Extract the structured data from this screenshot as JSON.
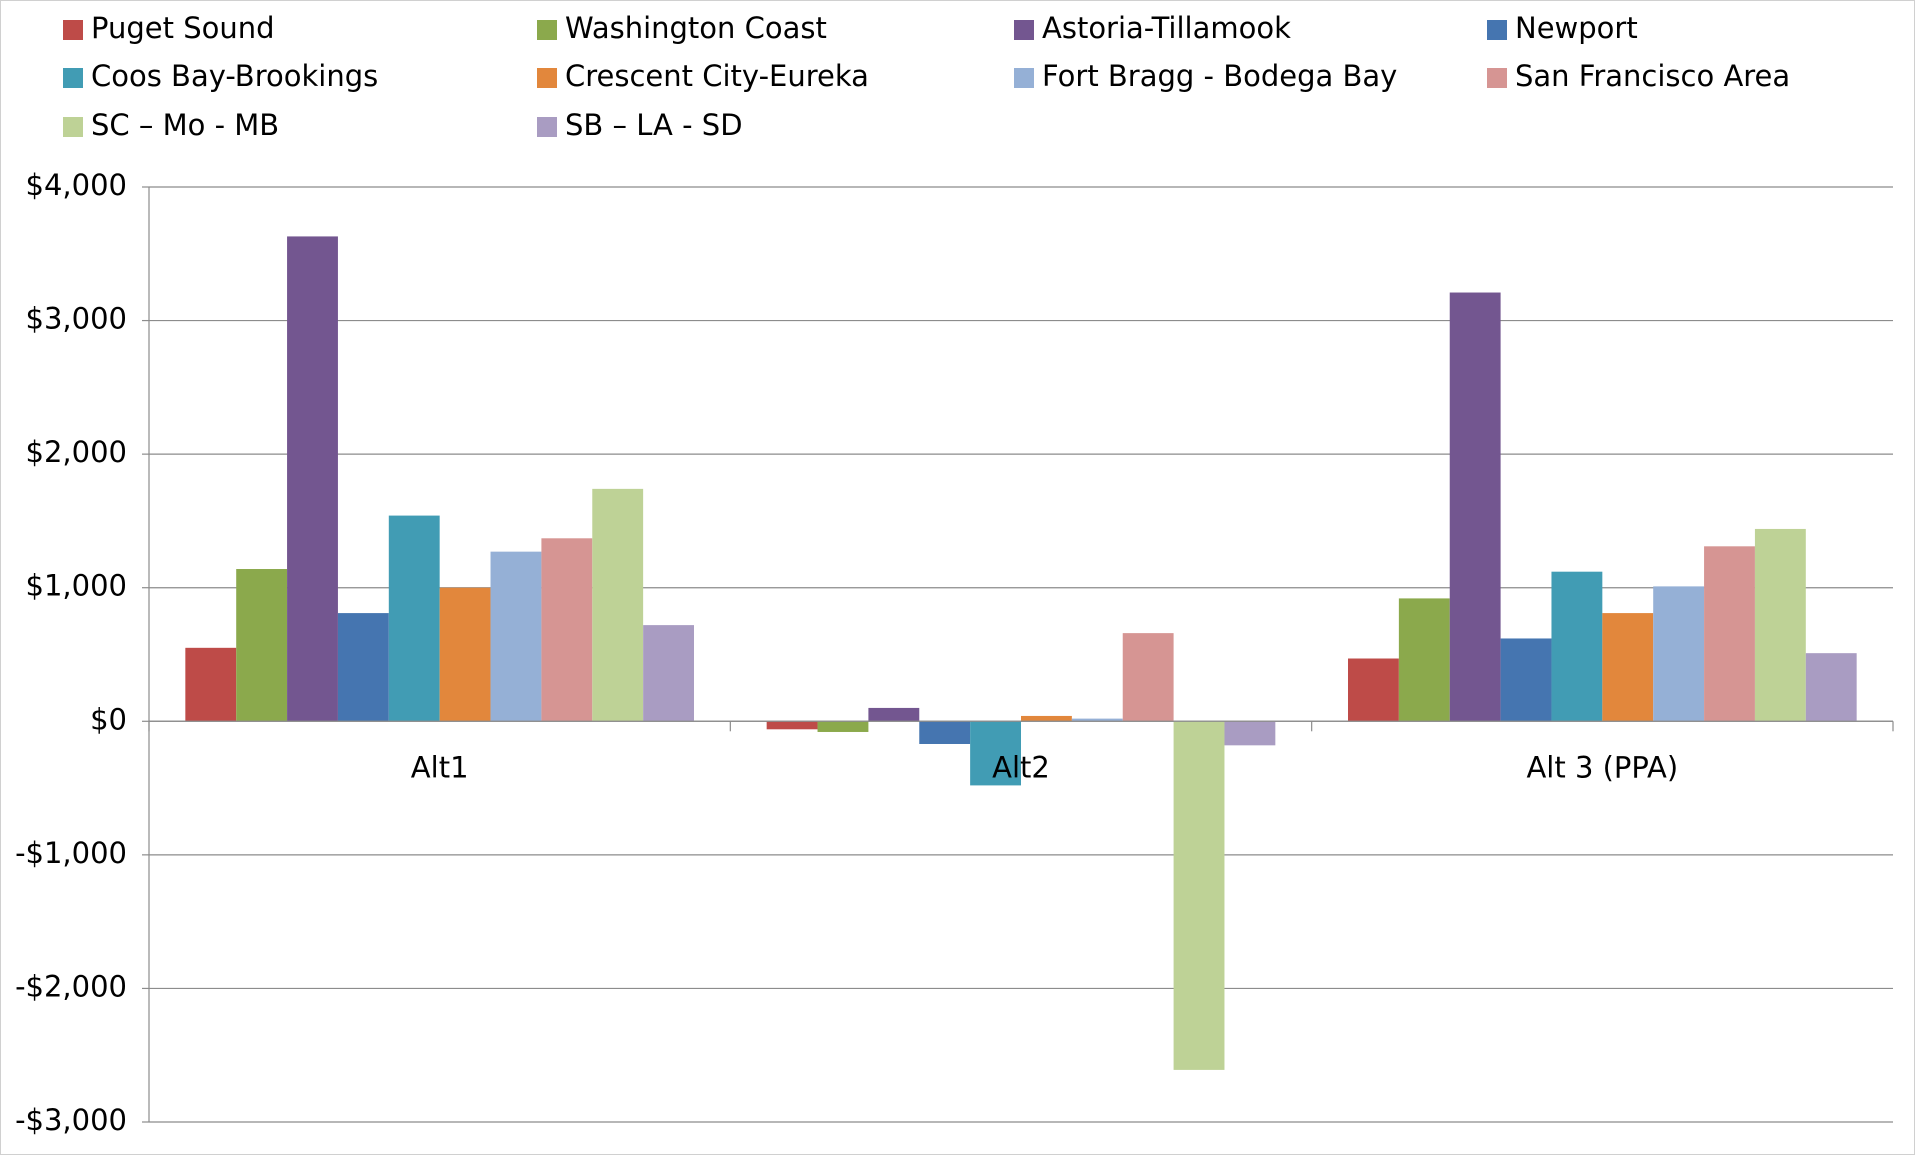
{
  "chart_data": {
    "type": "bar",
    "categories": [
      "Alt1",
      "Alt2",
      "Alt 3 (PPA)"
    ],
    "series": [
      {
        "name": "Puget Sound",
        "color": "#be4b48",
        "values": [
          550,
          -60,
          470
        ]
      },
      {
        "name": "Washington Coast",
        "color": "#8ba94c",
        "values": [
          1140,
          -80,
          920
        ]
      },
      {
        "name": "Astoria-Tillamook",
        "color": "#735690",
        "values": [
          3630,
          100,
          3210
        ]
      },
      {
        "name": "Newport",
        "color": "#4575b0",
        "values": [
          810,
          -170,
          620
        ]
      },
      {
        "name": "Coos Bay-Brookings",
        "color": "#419cb4",
        "values": [
          1540,
          -480,
          1120
        ]
      },
      {
        "name": "Crescent City-Eureka",
        "color": "#e2873c",
        "values": [
          1000,
          40,
          810
        ]
      },
      {
        "name": "Fort Bragg - Bodega Bay",
        "color": "#95b0d6",
        "values": [
          1270,
          20,
          1010
        ]
      },
      {
        "name": "San Francisco Area",
        "color": "#d69593",
        "values": [
          1370,
          660,
          1310
        ]
      },
      {
        "name": "SC – Mo - MB",
        "color": "#bed296",
        "values": [
          1740,
          -2610,
          1440
        ]
      },
      {
        "name": "SB – LA - SD",
        "color": "#a99cc2",
        "values": [
          720,
          -180,
          510
        ]
      }
    ],
    "ylim": [
      -3000,
      4000
    ],
    "yticks": [
      {
        "value": -3000,
        "label": "-$3,000"
      },
      {
        "value": -2000,
        "label": "-$2,000"
      },
      {
        "value": -1000,
        "label": "-$1,000"
      },
      {
        "value": 0,
        "label": "$0"
      },
      {
        "value": 1000,
        "label": "$1,000"
      },
      {
        "value": 2000,
        "label": "$2,000"
      },
      {
        "value": 3000,
        "label": "$3,000"
      },
      {
        "value": 4000,
        "label": "$4,000"
      }
    ],
    "grid": true,
    "legend": "top"
  }
}
